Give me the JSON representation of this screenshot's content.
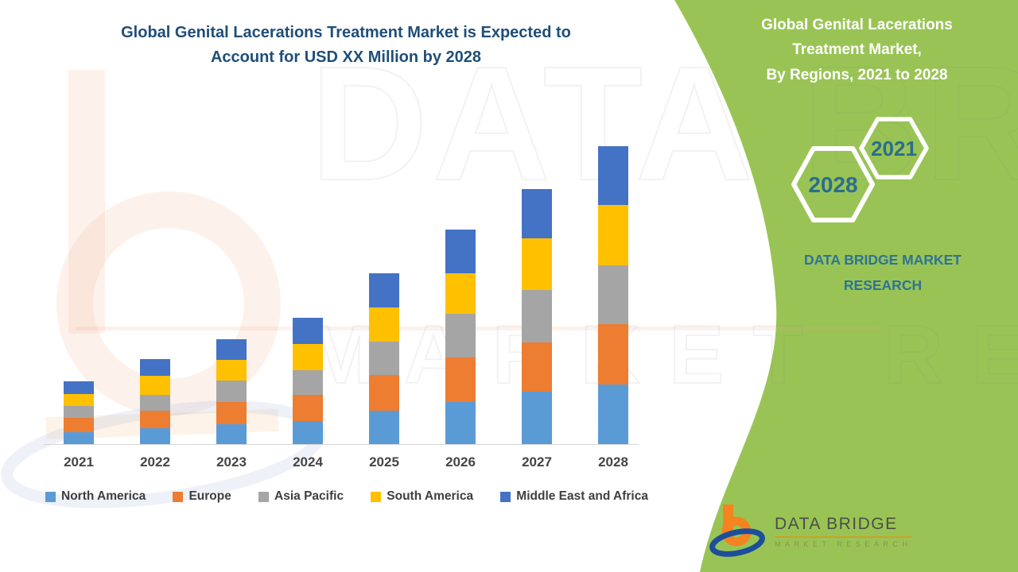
{
  "page": {
    "main_title": "Global Genital Lacerations Treatment Market is Expected to Account for USD XX Million by 2028",
    "watermark_line1": "DATA BRIDGE",
    "watermark_line2": "MARKET RESEARCH"
  },
  "side_panel": {
    "background_color": "#99C455",
    "title_lines": [
      "Global Genital Lacerations",
      "Treatment Market,",
      "By Regions, 2021 to 2028"
    ],
    "hexagons": {
      "start_year": "2021",
      "end_year": "2028"
    },
    "brand_line1": "DATA BRIDGE MARKET",
    "brand_line2": "RESEARCH",
    "brand_text_color": "#2E7495"
  },
  "logo": {
    "name": "DATA BRIDGE",
    "subtitle": "MARKET RESEARCH"
  },
  "chart_data": {
    "type": "bar",
    "stacked": true,
    "title": "Global Genital Lacerations Treatment Market, By Regions, 2021 to 2028",
    "xlabel": "",
    "ylabel": "",
    "value_axis_visible": false,
    "value_unit_note": "relative units; chart shows USD XX Million (values not labeled)",
    "grid": false,
    "legend_position": "bottom",
    "categories": [
      "2021",
      "2022",
      "2023",
      "2024",
      "2025",
      "2026",
      "2027",
      "2028"
    ],
    "series": [
      {
        "name": "North America",
        "color": "#5B9BD5",
        "values": [
          15,
          20,
          25,
          29,
          42,
          53,
          66,
          75
        ]
      },
      {
        "name": "Europe",
        "color": "#ED7D31",
        "values": [
          18,
          22,
          28,
          33,
          45,
          56,
          62,
          76
        ]
      },
      {
        "name": "Asia Pacific",
        "color": "#A5A5A5",
        "values": [
          15,
          20,
          27,
          31,
          42,
          55,
          66,
          74
        ]
      },
      {
        "name": "South America",
        "color": "#FFC000",
        "values": [
          15,
          24,
          26,
          33,
          43,
          51,
          65,
          76
        ]
      },
      {
        "name": "Middle East and Africa",
        "color": "#4472C4",
        "values": [
          16,
          21,
          26,
          33,
          43,
          55,
          62,
          74
        ]
      }
    ],
    "totals": [
      79,
      107,
      132,
      159,
      215,
      270,
      321,
      375
    ]
  }
}
